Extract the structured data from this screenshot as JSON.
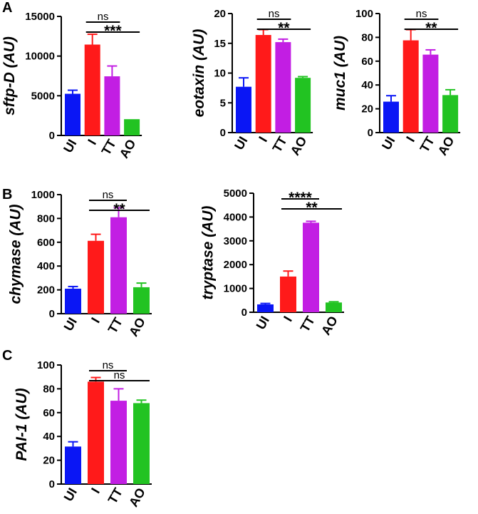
{
  "panel_labels": [
    "A",
    "B",
    "C"
  ],
  "colors": {
    "UI": "#0a16f5",
    "I": "#ff1a1a",
    "TT": "#c21ee3",
    "AO": "#22c322"
  },
  "chart_data": [
    {
      "type": "bar",
      "panel": "A",
      "ylabel": "sftp-D (AU)",
      "categories": [
        "UI",
        "I",
        "TT",
        "AO"
      ],
      "values": [
        5250,
        11450,
        7450,
        2050
      ],
      "errors": [
        450,
        1300,
        1300,
        0
      ],
      "ylim": [
        0,
        15000
      ],
      "yticks": [
        "0",
        "5000",
        "10000",
        "15000"
      ],
      "annotations": [
        {
          "from": "I",
          "to": "TT",
          "label": "ns"
        },
        {
          "from": "I",
          "to": "AO",
          "label": "***"
        }
      ]
    },
    {
      "type": "bar",
      "panel": "A",
      "ylabel": "eotaxin (AU)",
      "categories": [
        "UI",
        "I",
        "TT",
        "AO"
      ],
      "values": [
        7.7,
        16.4,
        15.2,
        9.2
      ],
      "errors": [
        1.5,
        0.9,
        0.5,
        0.2
      ],
      "ylim": [
        0,
        20
      ],
      "yticks": [
        "0",
        "5",
        "10",
        "15",
        "20"
      ],
      "annotations": [
        {
          "from": "I",
          "to": "TT",
          "label": "ns"
        },
        {
          "from": "I",
          "to": "AO",
          "label": "**"
        }
      ]
    },
    {
      "type": "bar",
      "panel": "A",
      "ylabel": "muc1 (AU)",
      "categories": [
        "UI",
        "I",
        "TT",
        "AO"
      ],
      "values": [
        26,
        77.5,
        65.5,
        31.5
      ],
      "errors": [
        5,
        9,
        4,
        4.5
      ],
      "ylim": [
        0,
        100
      ],
      "yticks": [
        "0",
        "20",
        "40",
        "60",
        "80",
        "100"
      ],
      "annotations": [
        {
          "from": "I",
          "to": "TT",
          "label": "ns"
        },
        {
          "from": "I",
          "to": "AO",
          "label": "**"
        }
      ]
    },
    {
      "type": "bar",
      "panel": "B",
      "ylabel": "chymase (AU)",
      "categories": [
        "UI",
        "I",
        "TT",
        "AO"
      ],
      "values": [
        210,
        612,
        810,
        222
      ],
      "errors": [
        18,
        55,
        80,
        35
      ],
      "ylim": [
        0,
        1000
      ],
      "yticks": [
        "0",
        "200",
        "400",
        "600",
        "800",
        "1000"
      ],
      "annotations": [
        {
          "from": "I",
          "to": "TT",
          "label": "ns"
        },
        {
          "from": "I",
          "to": "AO",
          "label": "**"
        }
      ]
    },
    {
      "type": "bar",
      "panel": "B",
      "ylabel": "tryptase (AU)",
      "categories": [
        "UI",
        "I",
        "TT",
        "AO"
      ],
      "values": [
        330,
        1500,
        3760,
        410
      ],
      "errors": [
        40,
        230,
        60,
        30
      ],
      "ylim": [
        0,
        5000
      ],
      "yticks": [
        "0",
        "1000",
        "2000",
        "3000",
        "4000",
        "5000"
      ],
      "annotations": [
        {
          "from": "I",
          "to": "TT",
          "label": "****"
        },
        {
          "from": "I",
          "to": "AO",
          "label": "**"
        }
      ]
    },
    {
      "type": "bar",
      "panel": "C",
      "ylabel": "PAI-1 (AU)",
      "categories": [
        "UI",
        "I",
        "TT",
        "AO"
      ],
      "values": [
        31.5,
        86,
        70,
        68
      ],
      "errors": [
        4,
        3.5,
        10,
        2.5
      ],
      "ylim": [
        0,
        100
      ],
      "yticks": [
        "0",
        "20",
        "40",
        "60",
        "80",
        "100"
      ],
      "annotations": [
        {
          "from": "I",
          "to": "TT",
          "label": "ns"
        },
        {
          "from": "I",
          "to": "AO",
          "label": "ns"
        }
      ]
    }
  ]
}
